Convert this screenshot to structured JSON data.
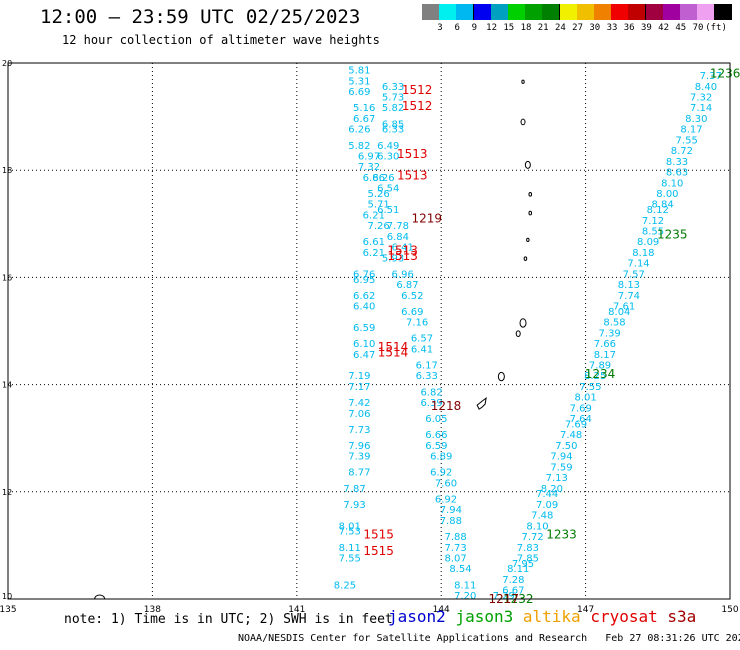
{
  "title": "12:00 – 23:59 UTC 02/25/2023",
  "subtitle": "12 hour collection of altimeter wave heights",
  "colorbar": {
    "colors": [
      "#808080",
      "#00f0f0",
      "#00b8f0",
      "#0000f0",
      "#00a0c0",
      "#00d000",
      "#00a000",
      "#008000",
      "#f0f000",
      "#f0c000",
      "#f08000",
      "#f00000",
      "#c00000",
      "#a00040",
      "#a000a0",
      "#c060d0",
      "#f0a0f0",
      "#000000"
    ],
    "labels": [
      "3",
      "6",
      "9",
      "12",
      "15",
      "18",
      "21",
      "24",
      "27",
      "30",
      "33",
      "36",
      "39",
      "42",
      "45",
      "70",
      "(ft)"
    ]
  },
  "note": "note: 1) Time is in UTC; 2) SWH is in feet",
  "satellites": [
    {
      "name": "jason2",
      "color": "#0000d0"
    },
    {
      "name": "jason3",
      "color": "#00a000"
    },
    {
      "name": "altika",
      "color": "#f0a000"
    },
    {
      "name": "cryosat",
      "color": "#e00000"
    },
    {
      "name": "s3a",
      "color": "#a00000"
    }
  ],
  "footer": "NOAA/NESDIS Center for Satellite Applications and Research   Feb 27 08:31:26 UTC 2023",
  "chart_data": {
    "type": "scatter",
    "xlim": [
      135,
      150
    ],
    "ylim": [
      10,
      20
    ],
    "xticks": [
      "135",
      "138",
      "141",
      "144",
      "147",
      "150"
    ],
    "yticks": [
      "20",
      "18",
      "16",
      "14",
      "12",
      "10"
    ],
    "grid": true,
    "tracks": [
      {
        "satellite": "jason3",
        "color": "#00bbee",
        "points": [
          {
            "lon": 145.3,
            "lat": 10.0,
            "v": "7.29"
          },
          {
            "lon": 145.5,
            "lat": 10.1,
            "v": "6.67"
          },
          {
            "lon": 145.5,
            "lat": 10.3,
            "v": "7.28"
          },
          {
            "lon": 145.6,
            "lat": 10.5,
            "v": "8.11"
          },
          {
            "lon": 145.7,
            "lat": 10.6,
            "v": "7.95"
          },
          {
            "lon": 145.8,
            "lat": 10.7,
            "v": "7.85"
          },
          {
            "lon": 145.8,
            "lat": 10.9,
            "v": "7.83"
          },
          {
            "lon": 145.9,
            "lat": 11.1,
            "v": "7.72"
          },
          {
            "lon": 146.0,
            "lat": 11.3,
            "v": "8.10"
          },
          {
            "lon": 146.1,
            "lat": 11.5,
            "v": "7.48"
          },
          {
            "lon": 146.2,
            "lat": 11.7,
            "v": "7.09"
          },
          {
            "lon": 146.2,
            "lat": 11.9,
            "v": "7.44"
          },
          {
            "lon": 146.3,
            "lat": 12.0,
            "v": "8.20"
          },
          {
            "lon": 146.4,
            "lat": 12.2,
            "v": "7.13"
          },
          {
            "lon": 146.5,
            "lat": 12.4,
            "v": "7.59"
          },
          {
            "lon": 146.5,
            "lat": 12.6,
            "v": "7.94"
          },
          {
            "lon": 146.6,
            "lat": 12.8,
            "v": "7.50"
          },
          {
            "lon": 146.7,
            "lat": 13.0,
            "v": "7.48"
          },
          {
            "lon": 146.8,
            "lat": 13.2,
            "v": "7.69"
          },
          {
            "lon": 146.9,
            "lat": 13.3,
            "v": "7.64"
          },
          {
            "lon": 146.9,
            "lat": 13.5,
            "v": "7.69"
          },
          {
            "lon": 147.0,
            "lat": 13.7,
            "v": "8.01"
          },
          {
            "lon": 147.1,
            "lat": 13.9,
            "v": "7.55"
          },
          {
            "lon": 147.2,
            "lat": 14.1,
            "v": "8.25"
          },
          {
            "lon": 147.3,
            "lat": 14.3,
            "v": "7.89"
          },
          {
            "lon": 147.4,
            "lat": 14.5,
            "v": "8.17"
          },
          {
            "lon": 147.4,
            "lat": 14.7,
            "v": "7.66"
          },
          {
            "lon": 147.5,
            "lat": 14.9,
            "v": "7.39"
          },
          {
            "lon": 147.6,
            "lat": 15.1,
            "v": "8.58"
          },
          {
            "lon": 147.7,
            "lat": 15.3,
            "v": "8.04"
          },
          {
            "lon": 147.8,
            "lat": 15.4,
            "v": "7.61"
          },
          {
            "lon": 147.9,
            "lat": 15.6,
            "v": "7.74"
          },
          {
            "lon": 147.9,
            "lat": 15.8,
            "v": "8.13"
          },
          {
            "lon": 148.0,
            "lat": 16.0,
            "v": "7.57"
          },
          {
            "lon": 148.1,
            "lat": 16.2,
            "v": "7.14"
          },
          {
            "lon": 148.2,
            "lat": 16.4,
            "v": "8.18"
          },
          {
            "lon": 148.3,
            "lat": 16.6,
            "v": "8.09"
          },
          {
            "lon": 148.4,
            "lat": 16.8,
            "v": "8.55"
          },
          {
            "lon": 148.4,
            "lat": 17.0,
            "v": "7.12"
          },
          {
            "lon": 148.5,
            "lat": 17.2,
            "v": "8.12"
          },
          {
            "lon": 148.6,
            "lat": 17.3,
            "v": "8.84"
          },
          {
            "lon": 148.7,
            "lat": 17.5,
            "v": "8.00"
          },
          {
            "lon": 148.8,
            "lat": 17.7,
            "v": "8.10"
          },
          {
            "lon": 148.9,
            "lat": 17.9,
            "v": "8.63"
          },
          {
            "lon": 148.9,
            "lat": 18.1,
            "v": "8.33"
          },
          {
            "lon": 149.0,
            "lat": 18.3,
            "v": "8.72"
          },
          {
            "lon": 149.1,
            "lat": 18.5,
            "v": "7.55"
          },
          {
            "lon": 149.2,
            "lat": 18.7,
            "v": "8.17"
          },
          {
            "lon": 149.3,
            "lat": 18.9,
            "v": "8.30"
          },
          {
            "lon": 149.4,
            "lat": 19.1,
            "v": "7.14"
          },
          {
            "lon": 149.4,
            "lat": 19.3,
            "v": "7.32"
          },
          {
            "lon": 149.5,
            "lat": 19.5,
            "v": "8.40"
          },
          {
            "lon": 149.6,
            "lat": 19.7,
            "v": "7.37"
          }
        ]
      },
      {
        "satellite": "jason3",
        "color": "#00bbee",
        "points": [
          {
            "lon": 143.0,
            "lat": 19.5,
            "v": "6.33"
          },
          {
            "lon": 143.0,
            "lat": 19.3,
            "v": "5.73"
          },
          {
            "lon": 143.0,
            "lat": 19.1,
            "v": "5.82"
          },
          {
            "lon": 143.0,
            "lat": 18.8,
            "v": "6.85"
          },
          {
            "lon": 143.0,
            "lat": 18.7,
            "v": "6.33"
          },
          {
            "lon": 142.9,
            "lat": 18.4,
            "v": "6.49"
          },
          {
            "lon": 142.9,
            "lat": 18.2,
            "v": "6.30"
          },
          {
            "lon": 142.8,
            "lat": 17.8,
            "v": "6.26"
          },
          {
            "lon": 142.9,
            "lat": 17.6,
            "v": "6.54"
          },
          {
            "lon": 142.9,
            "lat": 17.2,
            "v": "6.51"
          },
          {
            "lon": 143.1,
            "lat": 16.9,
            "v": "7.78"
          },
          {
            "lon": 143.1,
            "lat": 16.7,
            "v": "6.84"
          },
          {
            "lon": 143.2,
            "lat": 16.5,
            "v": "6.41"
          },
          {
            "lon": 143.0,
            "lat": 16.3,
            "v": "5.93"
          },
          {
            "lon": 143.2,
            "lat": 16.0,
            "v": "6.96"
          },
          {
            "lon": 143.3,
            "lat": 15.8,
            "v": "6.87"
          },
          {
            "lon": 143.4,
            "lat": 15.6,
            "v": "6.52"
          },
          {
            "lon": 143.4,
            "lat": 15.3,
            "v": "6.69"
          },
          {
            "lon": 143.5,
            "lat": 15.1,
            "v": "7.16"
          },
          {
            "lon": 143.6,
            "lat": 14.8,
            "v": "6.57"
          },
          {
            "lon": 143.6,
            "lat": 14.6,
            "v": "6.41"
          },
          {
            "lon": 143.7,
            "lat": 14.3,
            "v": "6.17"
          },
          {
            "lon": 143.7,
            "lat": 14.1,
            "v": "6.33"
          },
          {
            "lon": 143.8,
            "lat": 13.8,
            "v": "6.82"
          },
          {
            "lon": 143.8,
            "lat": 13.6,
            "v": "6.39"
          },
          {
            "lon": 143.9,
            "lat": 13.3,
            "v": "6.05"
          },
          {
            "lon": 143.9,
            "lat": 13.0,
            "v": "6.66"
          },
          {
            "lon": 143.9,
            "lat": 12.8,
            "v": "6.59"
          },
          {
            "lon": 144.0,
            "lat": 12.6,
            "v": "6.89"
          },
          {
            "lon": 144.0,
            "lat": 12.3,
            "v": "6.92"
          },
          {
            "lon": 144.1,
            "lat": 12.1,
            "v": "7.60"
          },
          {
            "lon": 144.1,
            "lat": 11.8,
            "v": "6.92"
          },
          {
            "lon": 144.2,
            "lat": 11.6,
            "v": "7.94"
          },
          {
            "lon": 144.2,
            "lat": 11.4,
            "v": "7.88"
          },
          {
            "lon": 144.3,
            "lat": 11.1,
            "v": "7.88"
          },
          {
            "lon": 144.3,
            "lat": 10.9,
            "v": "7.73"
          },
          {
            "lon": 144.3,
            "lat": 10.7,
            "v": "8.07"
          },
          {
            "lon": 144.4,
            "lat": 10.5,
            "v": "8.54"
          },
          {
            "lon": 144.5,
            "lat": 10.2,
            "v": "8.11"
          },
          {
            "lon": 144.5,
            "lat": 10.0,
            "v": "7.20"
          }
        ]
      },
      {
        "satellite": "jason3",
        "color": "#00bbee",
        "points": [
          {
            "lon": 142.3,
            "lat": 19.8,
            "v": "5.81"
          },
          {
            "lon": 142.3,
            "lat": 19.6,
            "v": "5.31"
          },
          {
            "lon": 142.3,
            "lat": 19.4,
            "v": "6.69"
          },
          {
            "lon": 142.4,
            "lat": 19.1,
            "v": "5.16"
          },
          {
            "lon": 142.4,
            "lat": 18.9,
            "v": "6.67"
          },
          {
            "lon": 142.3,
            "lat": 18.7,
            "v": "6.26"
          },
          {
            "lon": 142.3,
            "lat": 18.4,
            "v": "5.82"
          },
          {
            "lon": 142.5,
            "lat": 18.2,
            "v": "6.97"
          },
          {
            "lon": 142.5,
            "lat": 18.0,
            "v": "7.32"
          },
          {
            "lon": 142.6,
            "lat": 17.8,
            "v": "6.86"
          },
          {
            "lon": 142.7,
            "lat": 17.5,
            "v": "5.26"
          },
          {
            "lon": 142.7,
            "lat": 17.3,
            "v": "5.71"
          },
          {
            "lon": 142.6,
            "lat": 17.1,
            "v": "6.21"
          },
          {
            "lon": 142.7,
            "lat": 16.9,
            "v": "7.26"
          },
          {
            "lon": 142.6,
            "lat": 16.6,
            "v": "6.61"
          },
          {
            "lon": 142.6,
            "lat": 16.4,
            "v": "6.21"
          },
          {
            "lon": 142.4,
            "lat": 16.0,
            "v": "6.76"
          },
          {
            "lon": 142.4,
            "lat": 15.9,
            "v": "6.95"
          },
          {
            "lon": 142.4,
            "lat": 15.6,
            "v": "6.62"
          },
          {
            "lon": 142.4,
            "lat": 15.4,
            "v": "6.40"
          },
          {
            "lon": 142.4,
            "lat": 15.0,
            "v": "6.59"
          },
          {
            "lon": 142.4,
            "lat": 14.7,
            "v": "6.10"
          },
          {
            "lon": 142.4,
            "lat": 14.5,
            "v": "6.47"
          },
          {
            "lon": 142.3,
            "lat": 14.1,
            "v": "7.19"
          },
          {
            "lon": 142.3,
            "lat": 13.9,
            "v": "7.17"
          },
          {
            "lon": 142.3,
            "lat": 13.6,
            "v": "7.42"
          },
          {
            "lon": 142.3,
            "lat": 13.4,
            "v": "7.06"
          },
          {
            "lon": 142.3,
            "lat": 13.1,
            "v": "7.73"
          },
          {
            "lon": 142.3,
            "lat": 12.8,
            "v": "7.96"
          },
          {
            "lon": 142.3,
            "lat": 12.6,
            "v": "7.39"
          },
          {
            "lon": 142.3,
            "lat": 12.3,
            "v": "8.77"
          },
          {
            "lon": 142.2,
            "lat": 12.0,
            "v": "7.87"
          },
          {
            "lon": 142.2,
            "lat": 11.7,
            "v": "7.93"
          },
          {
            "lon": 142.1,
            "lat": 11.3,
            "v": "8.01"
          },
          {
            "lon": 142.1,
            "lat": 11.2,
            "v": "7.53"
          },
          {
            "lon": 142.1,
            "lat": 10.9,
            "v": "8.11"
          },
          {
            "lon": 142.1,
            "lat": 10.7,
            "v": "7.55"
          },
          {
            "lon": 142.0,
            "lat": 10.2,
            "v": "8.25"
          }
        ]
      }
    ],
    "time_labels": [
      {
        "lon": 149.9,
        "lat": 19.8,
        "t": "1236",
        "color": "#007a00"
      },
      {
        "lon": 148.8,
        "lat": 16.8,
        "t": "1235",
        "color": "#007a00"
      },
      {
        "lon": 147.3,
        "lat": 14.2,
        "t": "1234",
        "color": "#007a00"
      },
      {
        "lon": 146.5,
        "lat": 11.2,
        "t": "1233",
        "color": "#007a00"
      },
      {
        "lon": 145.6,
        "lat": 10.0,
        "t": "1232",
        "color": "#007a00"
      },
      {
        "lon": 145.3,
        "lat": 10.0,
        "t": "1217",
        "color": "#800000"
      },
      {
        "lon": 143.7,
        "lat": 17.1,
        "t": "1219",
        "color": "#800000"
      },
      {
        "lon": 144.1,
        "lat": 13.6,
        "t": "1218",
        "color": "#800000"
      },
      {
        "lon": 143.5,
        "lat": 19.5,
        "t": "1512",
        "color": "#e00000"
      },
      {
        "lon": 143.5,
        "lat": 19.2,
        "t": "1512",
        "color": "#e00000"
      },
      {
        "lon": 143.4,
        "lat": 18.3,
        "t": "1513",
        "color": "#e00000"
      },
      {
        "lon": 143.4,
        "lat": 17.9,
        "t": "1513",
        "color": "#e00000"
      },
      {
        "lon": 143.2,
        "lat": 16.5,
        "t": "1513",
        "color": "#e00000"
      },
      {
        "lon": 143.2,
        "lat": 16.4,
        "t": "1513",
        "color": "#e00000"
      },
      {
        "lon": 143.0,
        "lat": 14.7,
        "t": "1514",
        "color": "#e00000"
      },
      {
        "lon": 143.0,
        "lat": 14.6,
        "t": "1514",
        "color": "#e00000"
      },
      {
        "lon": 142.7,
        "lat": 11.2,
        "t": "1515",
        "color": "#e00000"
      },
      {
        "lon": 142.7,
        "lat": 10.9,
        "t": "1515",
        "color": "#e00000"
      }
    ]
  }
}
